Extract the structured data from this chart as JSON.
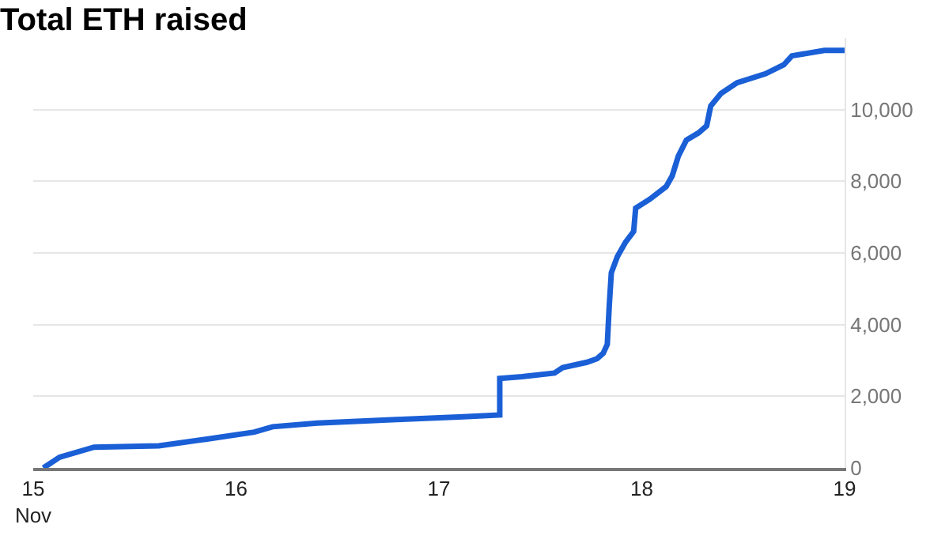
{
  "chart_data": {
    "type": "line",
    "title": "Total ETH raised",
    "x": [
      15.05,
      15.13,
      15.3,
      15.62,
      15.85,
      16.09,
      16.18,
      16.4,
      16.79,
      17.12,
      17.3,
      17.3,
      17.41,
      17.57,
      17.61,
      17.73,
      17.78,
      17.81,
      17.83,
      17.84,
      17.85,
      17.88,
      17.92,
      17.96,
      17.97,
      18.04,
      18.12,
      18.15,
      18.18,
      18.22,
      18.28,
      18.32,
      18.34,
      18.39,
      18.47,
      18.61,
      18.7,
      18.74,
      18.9,
      19.0
    ],
    "series": [
      {
        "color": "#1a5fd6",
        "values": [
          0,
          300,
          580,
          620,
          800,
          1000,
          1150,
          1250,
          1350,
          1430,
          1480,
          2500,
          2550,
          2650,
          2800,
          2950,
          3050,
          3200,
          3450,
          4550,
          5450,
          5900,
          6300,
          6600,
          7250,
          7500,
          7850,
          8150,
          8700,
          9150,
          9350,
          9550,
          10100,
          10450,
          10750,
          11000,
          11250,
          11500,
          11650,
          11650
        ]
      }
    ],
    "xlim": [
      15,
      19
    ],
    "xticks": [
      {
        "value": 15,
        "label": "15\nNov"
      },
      16,
      17,
      18,
      19
    ],
    "ylim": [
      0,
      12000
    ],
    "yticks": [
      0,
      {
        "value": 2000,
        "label": "2,000"
      },
      {
        "value": 4000,
        "label": "4,000"
      },
      {
        "value": 6000,
        "label": "6,000"
      },
      {
        "value": 8000,
        "label": "8,000"
      },
      {
        "value": 10000,
        "label": "10,000"
      }
    ],
    "grid": "y",
    "marker": "none",
    "line_style": "solid"
  }
}
